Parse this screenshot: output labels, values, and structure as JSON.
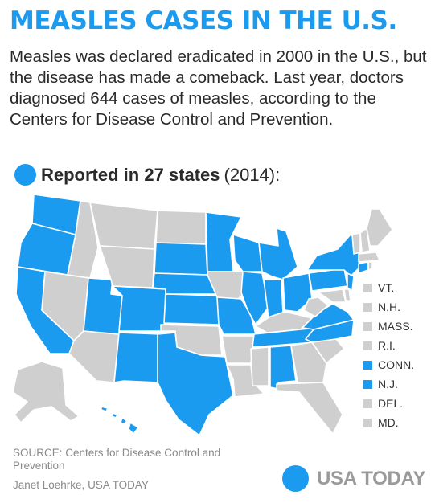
{
  "header": {
    "title": "MEASLES CASES IN THE U.S.",
    "intro": "Measles was declared eradicated in 2000 in the U.S., but the disease has made a comeback. Last year, doctors diagnosed 644 cases of measles, according to the Centers for Disease Control and Prevention."
  },
  "legend": {
    "label": "Reported in 27 states",
    "year": "(2014):",
    "reported_color": "#1a9bf0",
    "not_reported_color": "#cfcfcf"
  },
  "map": {
    "reported_states": [
      "WA",
      "OR",
      "CA",
      "UT",
      "CO",
      "NM",
      "AZ_no"
    ],
    "northeast": [
      {
        "label": "VT.",
        "reported": false
      },
      {
        "label": "N.H.",
        "reported": false
      },
      {
        "label": "MASS.",
        "reported": false
      },
      {
        "label": "R.I.",
        "reported": false
      },
      {
        "label": "CONN.",
        "reported": true
      },
      {
        "label": "N.J.",
        "reported": true
      },
      {
        "label": "DEL.",
        "reported": false
      },
      {
        "label": "MD.",
        "reported": false
      }
    ]
  },
  "footer": {
    "source": "SOURCE:  Centers for Disease Control and Prevention",
    "credit": "Janet Loehrke, USA TODAY",
    "logo": "USA TODAY"
  }
}
